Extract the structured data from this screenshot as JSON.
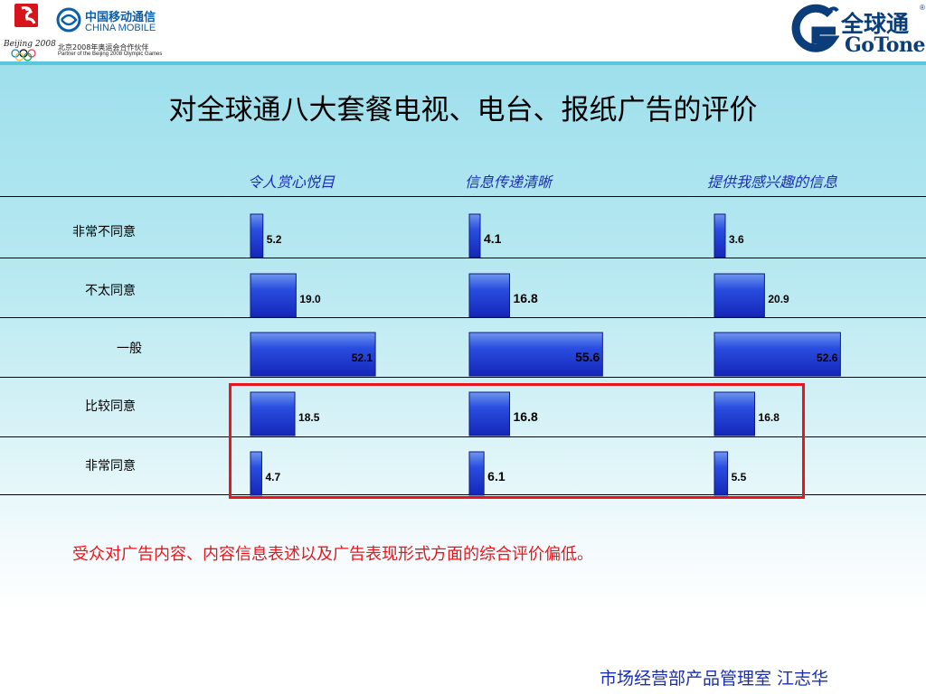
{
  "header": {
    "olympic_text": "Beijing 2008",
    "china_mobile_cn": "中国移动通信",
    "china_mobile_en": "CHINA MOBILE",
    "partner_cn": "北京2008年奥运会合作伙伴",
    "partner_en": "Partner of the Beijing 2008 Olympic Games",
    "gotone_cn": "全球通",
    "gotone_en": "GoTone",
    "gotone_reg": "®"
  },
  "title": "对全球通八大套餐电视、电台、报纸广告的评价",
  "conclusion": "受众对广告内容、内容信息表述以及广告表现形式方面的综合评价偏低。",
  "footer": "市场经营部产品管理室  江志华",
  "colors": {
    "bar_dark": "#1b33c9",
    "bar_light": "#5f8ae8",
    "header_text": "#1a2fb0",
    "highlight": "#e8161c"
  },
  "chart_data": {
    "type": "bar",
    "orientation": "horizontal",
    "categories": [
      "非常不同意",
      "不太同意",
      "一般",
      "比较同意",
      "非常同意"
    ],
    "series": [
      {
        "name": "令人赏心悦目",
        "values": [
          5.2,
          19.0,
          52.1,
          18.5,
          4.7
        ]
      },
      {
        "name": "信息传递清晰",
        "values": [
          4.1,
          16.8,
          55.6,
          16.8,
          6.1
        ]
      },
      {
        "name": "提供我感兴趣的信息",
        "values": [
          3.6,
          20.9,
          52.6,
          16.8,
          5.5
        ]
      }
    ],
    "value_labels": [
      [
        "5.2",
        "19.0",
        "52.1",
        "18.5",
        "4.7"
      ],
      [
        "4.1",
        "16.8",
        "55.6",
        "16.8",
        "6.1"
      ],
      [
        "3.6",
        "20.9",
        "52.6",
        "16.8",
        "5.5"
      ]
    ],
    "highlighted_categories": [
      "比较同意",
      "非常同意"
    ],
    "grid": false,
    "legend": "none"
  }
}
